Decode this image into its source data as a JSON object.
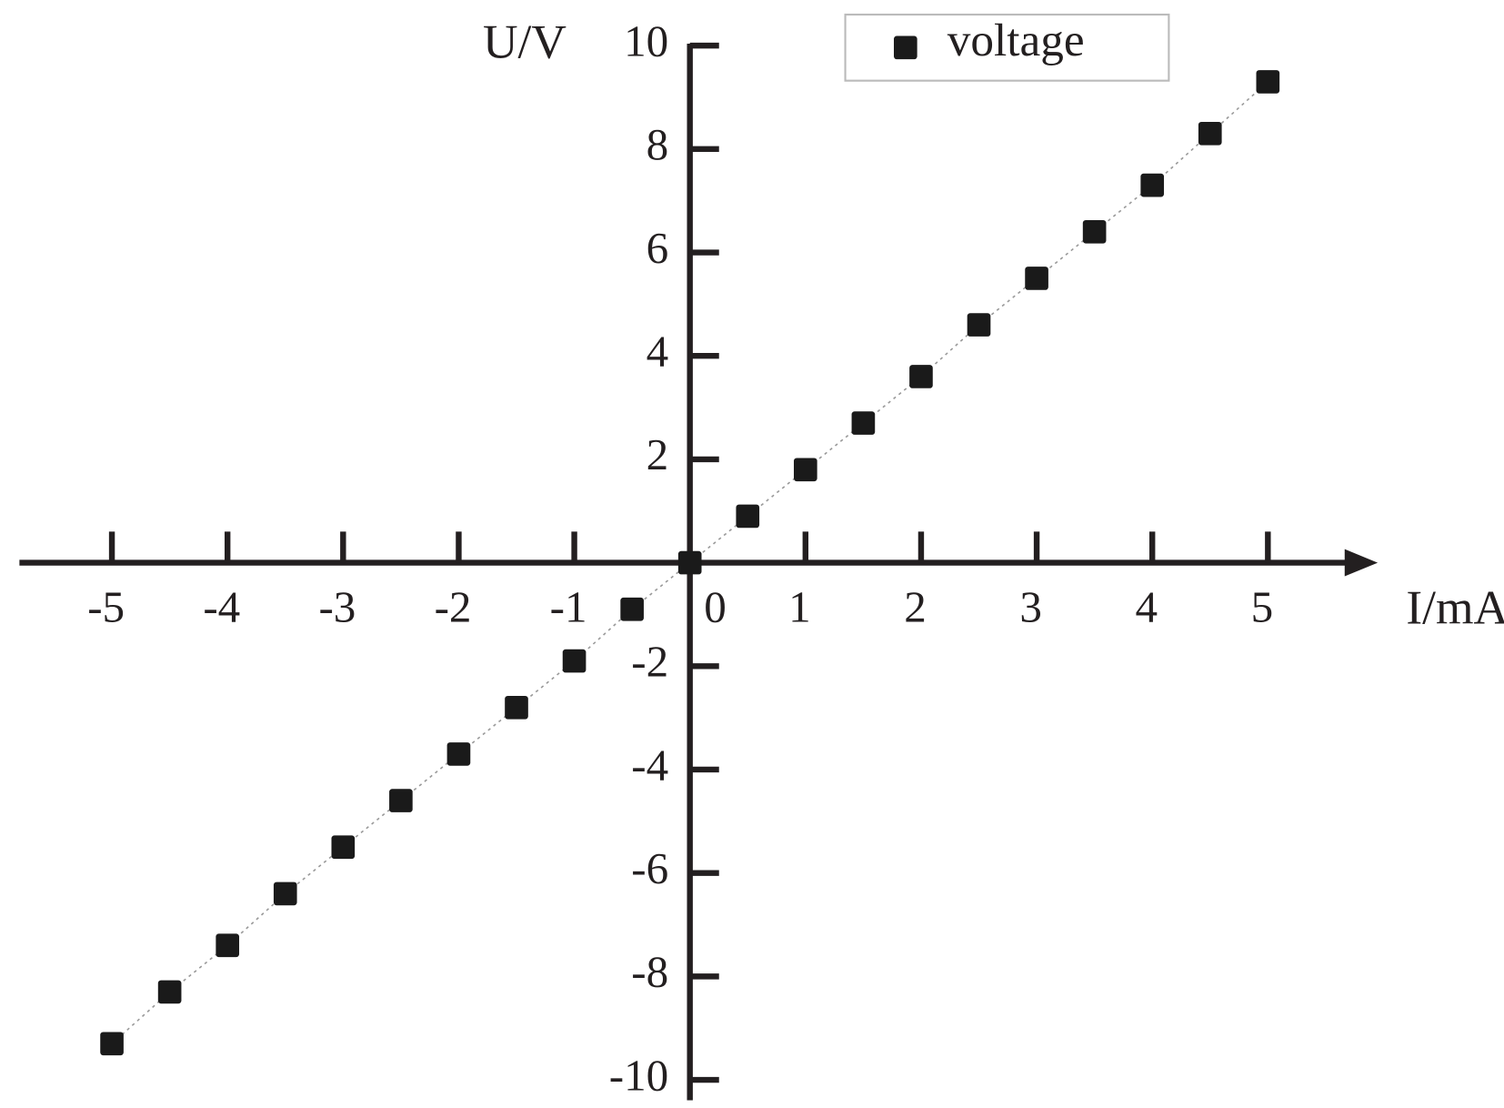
{
  "chart_data": {
    "type": "scatter",
    "x_label": "I/mA",
    "y_label": "U/V",
    "x": [
      -5,
      -4.5,
      -4,
      -3.5,
      -3,
      -2.5,
      -2,
      -1.5,
      -1,
      -0.5,
      0,
      0.5,
      1,
      1.5,
      2,
      2.5,
      3,
      3.5,
      4,
      4.5,
      5
    ],
    "series": [
      {
        "name": "voltage",
        "color": "#1a1a1a",
        "values": [
          -9.3,
          -8.3,
          -7.4,
          -6.4,
          -5.5,
          -4.6,
          -3.7,
          -2.8,
          -1.9,
          -0.9,
          0,
          0.9,
          1.8,
          2.7,
          3.6,
          4.6,
          5.5,
          6.4,
          7.3,
          8.3,
          9.3
        ]
      }
    ],
    "xlim": [
      -5.8,
      5.95
    ],
    "ylim": [
      -10.3,
      10.6
    ],
    "xticks": [
      -5,
      -4,
      -3,
      -2,
      -1,
      0,
      1,
      2,
      3,
      4,
      5
    ],
    "yticks": [
      -10,
      -8,
      -6,
      -4,
      -2,
      2,
      4,
      6,
      8,
      10
    ],
    "legend": "upper right",
    "grid": false
  }
}
